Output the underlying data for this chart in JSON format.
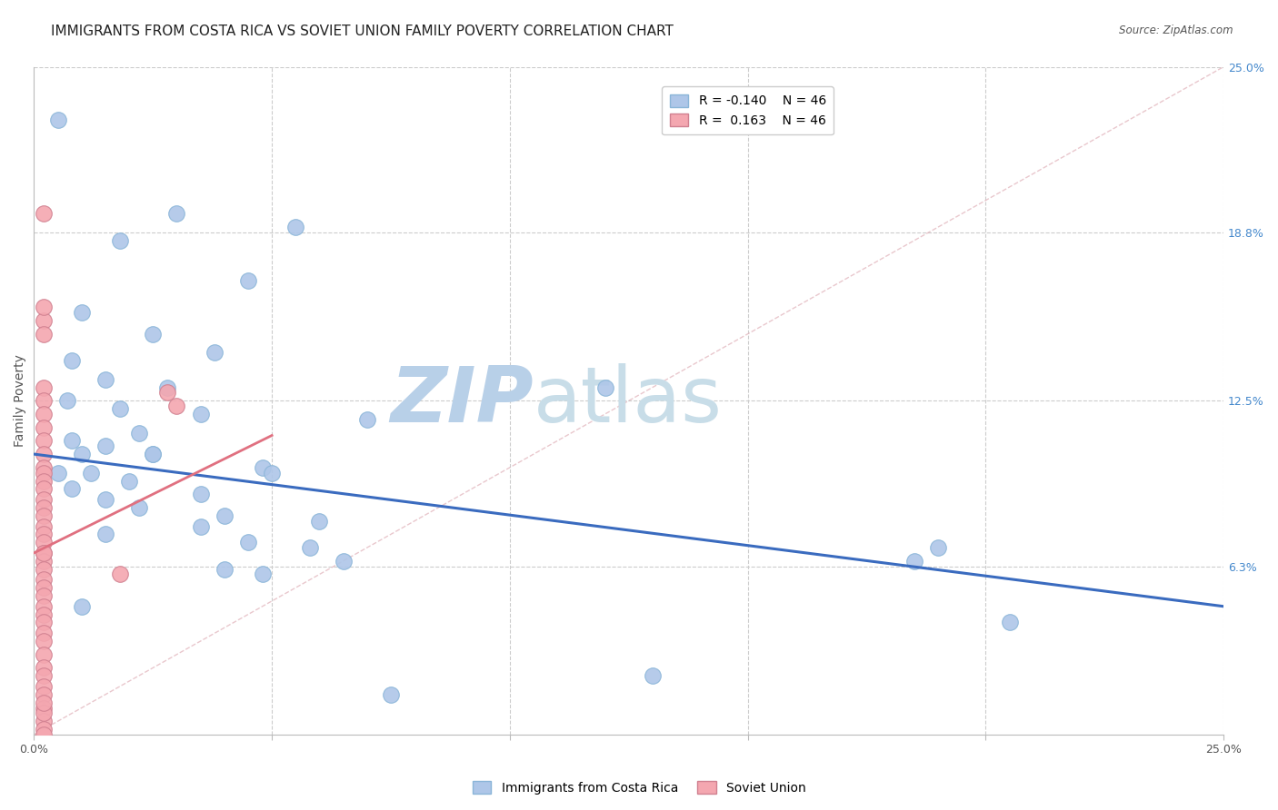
{
  "title": "IMMIGRANTS FROM COSTA RICA VS SOVIET UNION FAMILY POVERTY CORRELATION CHART",
  "source": "Source: ZipAtlas.com",
  "ylabel": "Family Poverty",
  "xlim": [
    0,
    0.25
  ],
  "ylim": [
    0,
    0.25
  ],
  "ytick_labels_right": [
    "6.3%",
    "12.5%",
    "18.8%",
    "25.0%"
  ],
  "ytick_vals_right": [
    0.063,
    0.125,
    0.188,
    0.25
  ],
  "legend_r_blue": "R = -0.140",
  "legend_n_blue": "N = 46",
  "legend_r_pink": "R =  0.163",
  "legend_n_pink": "N = 46",
  "blue_color": "#aec6e8",
  "pink_color": "#f4a7b0",
  "blue_line_color": "#3a6bbf",
  "pink_line_color": "#e07080",
  "diag_line_color": "#e0b0b8",
  "watermark_zip": "ZIP",
  "watermark_atlas": "atlas",
  "watermark_color": "#c8dff0",
  "background_color": "#ffffff",
  "blue_scatter": [
    [
      0.005,
      0.23
    ],
    [
      0.03,
      0.195
    ],
    [
      0.055,
      0.19
    ],
    [
      0.018,
      0.185
    ],
    [
      0.045,
      0.17
    ],
    [
      0.01,
      0.158
    ],
    [
      0.025,
      0.15
    ],
    [
      0.038,
      0.143
    ],
    [
      0.008,
      0.14
    ],
    [
      0.015,
      0.133
    ],
    [
      0.028,
      0.13
    ],
    [
      0.12,
      0.13
    ],
    [
      0.007,
      0.125
    ],
    [
      0.018,
      0.122
    ],
    [
      0.035,
      0.12
    ],
    [
      0.07,
      0.118
    ],
    [
      0.022,
      0.113
    ],
    [
      0.008,
      0.11
    ],
    [
      0.015,
      0.108
    ],
    [
      0.01,
      0.105
    ],
    [
      0.025,
      0.105
    ],
    [
      0.048,
      0.1
    ],
    [
      0.005,
      0.098
    ],
    [
      0.012,
      0.098
    ],
    [
      0.02,
      0.095
    ],
    [
      0.008,
      0.092
    ],
    [
      0.025,
      0.105
    ],
    [
      0.05,
      0.098
    ],
    [
      0.035,
      0.09
    ],
    [
      0.015,
      0.088
    ],
    [
      0.022,
      0.085
    ],
    [
      0.04,
      0.082
    ],
    [
      0.06,
      0.08
    ],
    [
      0.035,
      0.078
    ],
    [
      0.015,
      0.075
    ],
    [
      0.045,
      0.072
    ],
    [
      0.058,
      0.07
    ],
    [
      0.065,
      0.065
    ],
    [
      0.04,
      0.062
    ],
    [
      0.048,
      0.06
    ],
    [
      0.01,
      0.048
    ],
    [
      0.13,
      0.022
    ],
    [
      0.19,
      0.07
    ],
    [
      0.185,
      0.065
    ],
    [
      0.075,
      0.015
    ],
    [
      0.205,
      0.042
    ]
  ],
  "pink_scatter": [
    [
      0.002,
      0.195
    ],
    [
      0.002,
      0.155
    ],
    [
      0.002,
      0.13
    ],
    [
      0.028,
      0.128
    ],
    [
      0.03,
      0.123
    ],
    [
      0.002,
      0.125
    ],
    [
      0.002,
      0.12
    ],
    [
      0.002,
      0.115
    ],
    [
      0.002,
      0.11
    ],
    [
      0.002,
      0.105
    ],
    [
      0.002,
      0.1
    ],
    [
      0.002,
      0.098
    ],
    [
      0.002,
      0.095
    ],
    [
      0.002,
      0.092
    ],
    [
      0.002,
      0.088
    ],
    [
      0.002,
      0.085
    ],
    [
      0.002,
      0.082
    ],
    [
      0.002,
      0.078
    ],
    [
      0.002,
      0.075
    ],
    [
      0.002,
      0.072
    ],
    [
      0.002,
      0.068
    ],
    [
      0.002,
      0.065
    ],
    [
      0.002,
      0.062
    ],
    [
      0.002,
      0.058
    ],
    [
      0.002,
      0.055
    ],
    [
      0.002,
      0.052
    ],
    [
      0.002,
      0.048
    ],
    [
      0.002,
      0.045
    ],
    [
      0.002,
      0.042
    ],
    [
      0.002,
      0.038
    ],
    [
      0.002,
      0.035
    ],
    [
      0.002,
      0.03
    ],
    [
      0.002,
      0.025
    ],
    [
      0.002,
      0.022
    ],
    [
      0.002,
      0.018
    ],
    [
      0.002,
      0.015
    ],
    [
      0.002,
      0.01
    ],
    [
      0.002,
      0.005
    ],
    [
      0.002,
      0.002
    ],
    [
      0.002,
      0.0
    ],
    [
      0.002,
      0.008
    ],
    [
      0.002,
      0.012
    ],
    [
      0.002,
      0.068
    ],
    [
      0.018,
      0.06
    ],
    [
      0.002,
      0.15
    ],
    [
      0.002,
      0.16
    ]
  ],
  "blue_line": [
    [
      0.0,
      0.105
    ],
    [
      0.25,
      0.048
    ]
  ],
  "pink_line": [
    [
      0.0,
      0.068
    ],
    [
      0.05,
      0.112
    ]
  ],
  "grid_color": "#cccccc",
  "title_fontsize": 11,
  "axis_label_fontsize": 10,
  "tick_fontsize": 9
}
